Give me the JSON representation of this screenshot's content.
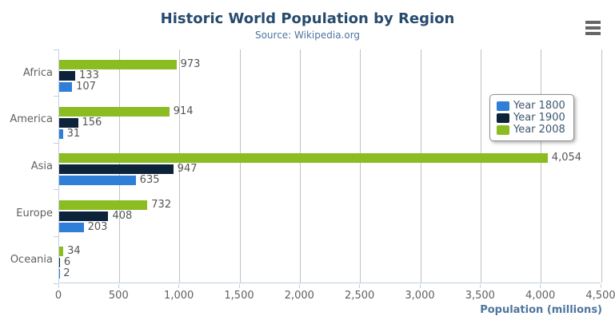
{
  "chart_data": {
    "type": "bar",
    "title": "Historic World Population by Region",
    "subtitle": "Source: Wikipedia.org",
    "categories": [
      "Africa",
      "America",
      "Asia",
      "Europe",
      "Oceania"
    ],
    "series": [
      {
        "name": "Year 1800",
        "color": "#2f7ed8",
        "values": [
          107,
          31,
          635,
          203,
          2
        ]
      },
      {
        "name": "Year 1900",
        "color": "#0d233a",
        "values": [
          133,
          156,
          947,
          408,
          6
        ]
      },
      {
        "name": "Year 2008",
        "color": "#8bbc21",
        "values": [
          973,
          914,
          4054,
          732,
          34
        ]
      }
    ],
    "bar_order_top_to_bottom": [
      "Year 2008",
      "Year 1900",
      "Year 1800"
    ],
    "xlabel": "Population (millions)",
    "xlim": [
      0,
      4500
    ],
    "tick_interval": 500,
    "x_ticks": [
      "0",
      "500",
      "1,000",
      "1,500",
      "2,000",
      "2,500",
      "3,000",
      "3,500",
      "4,000",
      "4,500"
    ],
    "grid": true,
    "legend_position": "right",
    "data_labels": true
  },
  "palette": {
    "title_color": "#274b6d",
    "subtitle_color": "#4d759e",
    "axis_title_color": "#4d759e",
    "tick_label_color": "#606060",
    "value_label_color": "#555555",
    "grid_color": "#C0C0C0",
    "axis_line_color": "#C0D0E0",
    "legend_text_color": "#3E576F",
    "legend_border_color": "#909090",
    "menu_icon_color": "#666666"
  },
  "toolbar": {
    "context_menu": "chart context menu"
  }
}
